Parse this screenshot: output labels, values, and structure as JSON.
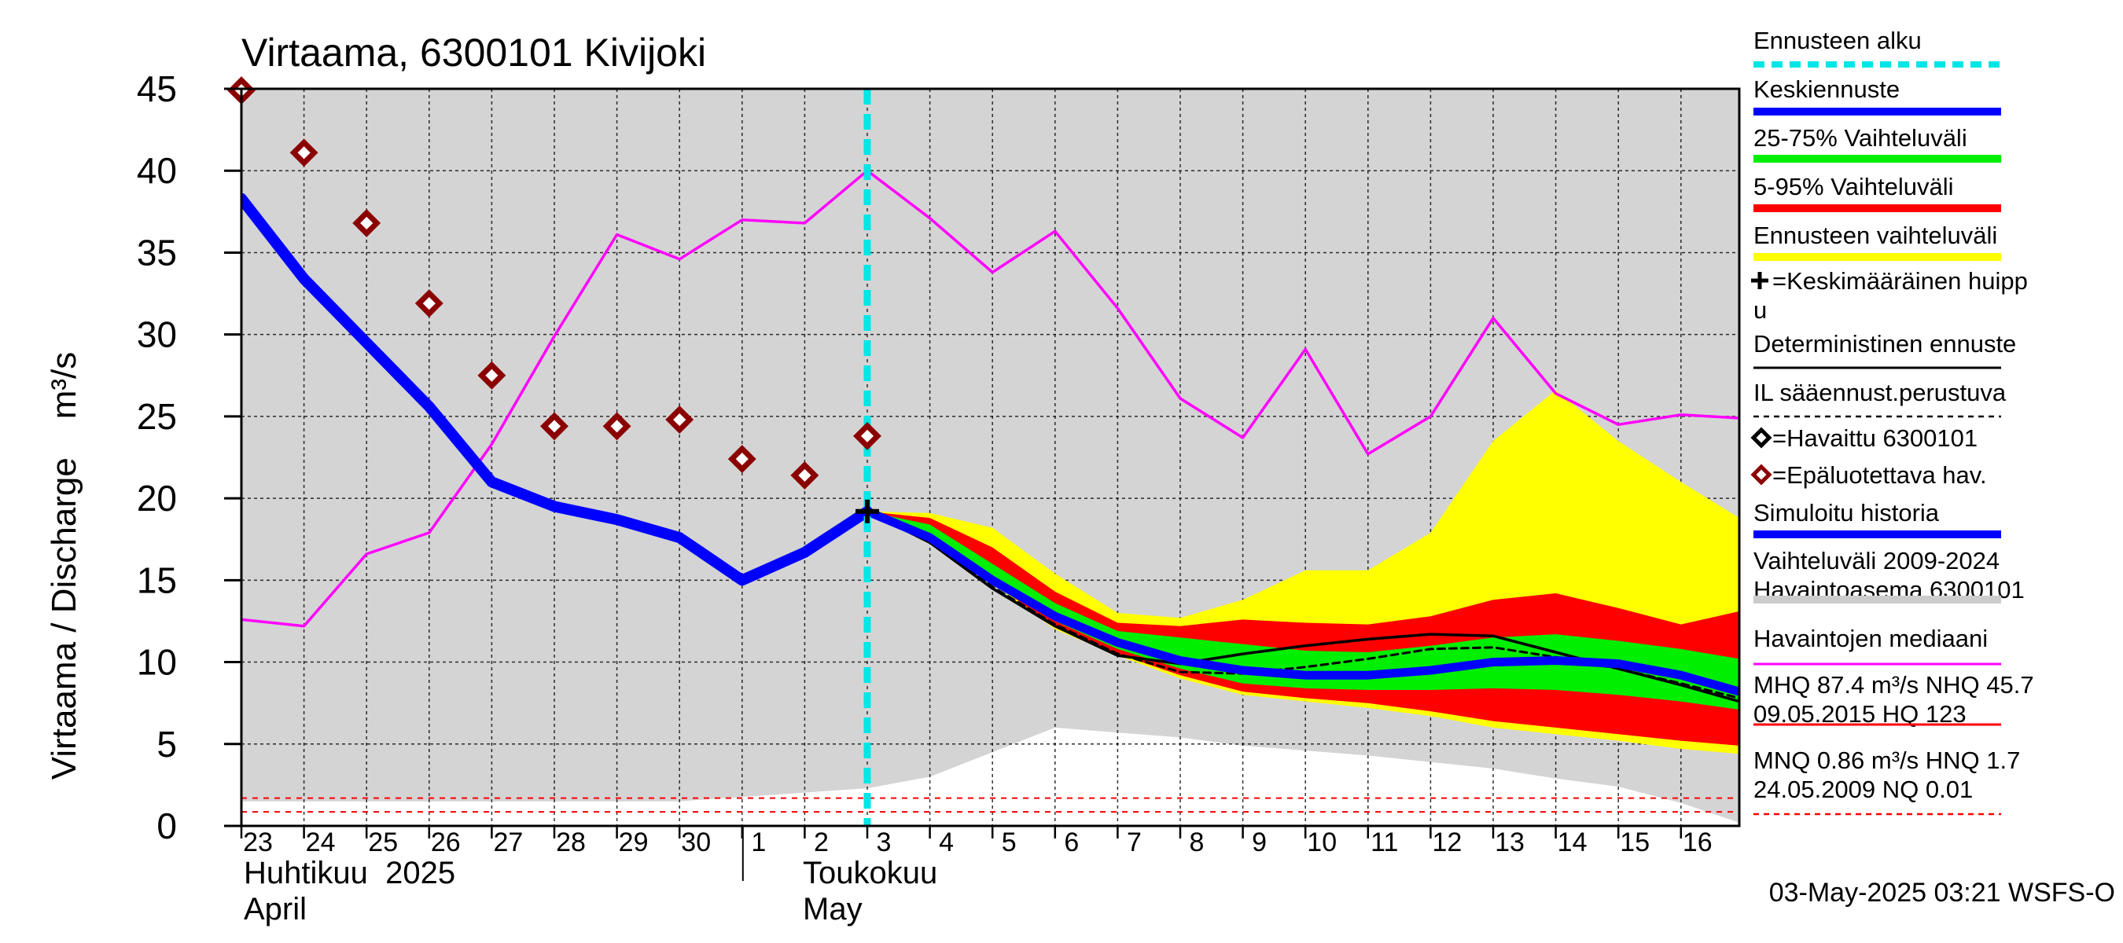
{
  "chart_data": {
    "type": "line",
    "title": "Virtaama, 6300101 Kivijoki",
    "ylabel": "Virtaama / Discharge    m³/s",
    "ylim": [
      0,
      45
    ],
    "y_ticks": [
      "0",
      "5",
      "10",
      "15",
      "20",
      "25",
      "30",
      "35",
      "40",
      "45"
    ],
    "x_ticks": [
      "23",
      "24",
      "25",
      "26",
      "27",
      "28",
      "29",
      "30",
      "1",
      "2",
      "3",
      "4",
      "5",
      "6",
      "7",
      "8",
      "9",
      "10",
      "11",
      "12",
      "13",
      "14",
      "15",
      "16"
    ],
    "x_dates": [
      "2025-04-23",
      "2025-04-24",
      "2025-04-25",
      "2025-04-26",
      "2025-04-27",
      "2025-04-28",
      "2025-04-29",
      "2025-04-30",
      "2025-05-01",
      "2025-05-02",
      "2025-05-03",
      "2025-05-04",
      "2025-05-05",
      "2025-05-06",
      "2025-05-07",
      "2025-05-08",
      "2025-05-09",
      "2025-05-10",
      "2025-05-11",
      "2025-05-12",
      "2025-05-13",
      "2025-05-14",
      "2025-05-15",
      "2025-05-16"
    ],
    "month_labels": [
      {
        "fi": "Huhtikuu  2025",
        "en": "April"
      },
      {
        "fi": "Toukokuu",
        "en": "May"
      }
    ],
    "forecast_start": "2025-05-03",
    "footer": "03-May-2025 03:21 WSFS-O",
    "history_band": {
      "x": [
        "2025-04-22",
        "2025-04-30",
        "2025-05-03",
        "2025-05-04",
        "2025-05-05",
        "2025-05-06",
        "2025-05-07",
        "2025-05-08",
        "2025-05-09",
        "2025-05-10",
        "2025-05-11",
        "2025-05-12",
        "2025-05-13",
        "2025-05-14",
        "2025-05-15",
        "2025-05-16",
        "2025-05-17"
      ],
      "low": [
        1.5,
        1.5,
        2.3,
        3.0,
        4.5,
        6.0,
        5.7,
        5.4,
        4.9,
        4.6,
        4.3,
        3.9,
        3.5,
        2.9,
        2.4,
        1.4,
        0.2
      ],
      "high": [
        45,
        45,
        45,
        45,
        45,
        45,
        45,
        45,
        45,
        45,
        45,
        45,
        45,
        45,
        45,
        45,
        45
      ]
    },
    "forecast_x": [
      "2025-05-03",
      "2025-05-04",
      "2025-05-05",
      "2025-05-06",
      "2025-05-07",
      "2025-05-08",
      "2025-05-09",
      "2025-05-10",
      "2025-05-11",
      "2025-05-12",
      "2025-05-13",
      "2025-05-14",
      "2025-05-15",
      "2025-05-16",
      "2025-05-17"
    ],
    "band_yellow": {
      "low": [
        19.2,
        17.7,
        14.8,
        12.0,
        10.4,
        9.0,
        8.0,
        7.6,
        7.2,
        6.7,
        6.0,
        5.6,
        5.2,
        4.7,
        4.4
      ],
      "high": [
        19.2,
        19.1,
        18.2,
        15.4,
        13.0,
        12.7,
        13.8,
        15.6,
        15.6,
        17.9,
        23.5,
        26.6,
        23.5,
        21.0,
        18.8
      ]
    },
    "band_red": {
      "low": [
        19.2,
        17.8,
        14.9,
        12.1,
        10.5,
        9.2,
        8.2,
        7.8,
        7.5,
        7.0,
        6.4,
        6.0,
        5.6,
        5.2,
        4.9
      ],
      "high": [
        19.2,
        18.8,
        17.0,
        14.3,
        12.4,
        12.2,
        12.6,
        12.4,
        12.3,
        12.8,
        13.8,
        14.2,
        13.3,
        12.3,
        13.1
      ]
    },
    "band_green": {
      "low": [
        19.2,
        17.9,
        15.2,
        12.5,
        10.8,
        9.6,
        8.7,
        8.4,
        8.3,
        8.3,
        8.4,
        8.3,
        8.0,
        7.6,
        7.1
      ],
      "high": [
        19.2,
        18.4,
        16.0,
        13.6,
        11.9,
        11.5,
        11.1,
        10.7,
        10.6,
        11.0,
        11.5,
        11.7,
        11.3,
        10.8,
        10.2
      ]
    },
    "series": [
      {
        "name": "Simuloitu historia",
        "color": "#0000ff",
        "x": [
          "2025-04-23",
          "2025-04-24",
          "2025-04-25",
          "2025-04-26",
          "2025-04-27",
          "2025-04-28",
          "2025-04-29",
          "2025-04-30",
          "2025-05-01",
          "2025-05-02",
          "2025-05-03"
        ],
        "values": [
          38.3,
          33.4,
          29.5,
          25.6,
          21.0,
          19.5,
          18.7,
          17.6,
          15.0,
          16.7,
          19.2
        ]
      },
      {
        "name": "Keskiennuste",
        "color": "#0000ff",
        "x": [
          "2025-05-03",
          "2025-05-04",
          "2025-05-05",
          "2025-05-06",
          "2025-05-07",
          "2025-05-08",
          "2025-05-09",
          "2025-05-10",
          "2025-05-11",
          "2025-05-12",
          "2025-05-13",
          "2025-05-14",
          "2025-05-15",
          "2025-05-16",
          "2025-05-17"
        ],
        "values": [
          19.2,
          17.6,
          15.0,
          12.8,
          11.2,
          10.1,
          9.5,
          9.2,
          9.2,
          9.5,
          10.0,
          10.1,
          9.9,
          9.2,
          8.2
        ]
      },
      {
        "name": "Deterministinen ennuste",
        "color": "#000000",
        "x": [
          "2025-05-03",
          "2025-05-04",
          "2025-05-05",
          "2025-05-06",
          "2025-05-07",
          "2025-05-08",
          "2025-05-09",
          "2025-05-10",
          "2025-05-11",
          "2025-05-12",
          "2025-05-13",
          "2025-05-14",
          "2025-05-15",
          "2025-05-16",
          "2025-05-17"
        ],
        "values": [
          19.2,
          17.3,
          14.5,
          12.2,
          10.4,
          9.9,
          10.5,
          11.0,
          11.4,
          11.7,
          11.6,
          10.6,
          9.6,
          8.6,
          7.6
        ]
      },
      {
        "name": "IL sääennust.perustuva",
        "color": "#000000",
        "x": [
          "2025-05-03",
          "2025-05-04",
          "2025-05-05",
          "2025-05-06",
          "2025-05-07",
          "2025-05-08",
          "2025-05-09",
          "2025-05-10",
          "2025-05-11",
          "2025-05-12",
          "2025-05-13",
          "2025-05-14",
          "2025-05-15",
          "2025-05-16",
          "2025-05-17"
        ],
        "values": [
          19.2,
          17.4,
          14.6,
          12.3,
          10.5,
          9.4,
          9.3,
          9.7,
          10.2,
          10.8,
          10.9,
          10.3,
          9.6,
          8.7,
          7.8
        ]
      },
      {
        "name": "Havaintojen mediaani",
        "color": "#ff00ff",
        "x": [
          "2025-04-22",
          "2025-04-23",
          "2025-04-24",
          "2025-04-25",
          "2025-04-26",
          "2025-04-27",
          "2025-04-28",
          "2025-04-29",
          "2025-04-30",
          "2025-05-01",
          "2025-05-02",
          "2025-05-03",
          "2025-05-04",
          "2025-05-05",
          "2025-05-06",
          "2025-05-07",
          "2025-05-08",
          "2025-05-09",
          "2025-05-10",
          "2025-05-11",
          "2025-05-12",
          "2025-05-13",
          "2025-05-14",
          "2025-05-15",
          "2025-05-16",
          "2025-05-17"
        ],
        "values": [
          12.7,
          12.6,
          12.2,
          16.6,
          17.9,
          23.3,
          29.9,
          36.1,
          34.6,
          37.0,
          36.8,
          40.0,
          37.1,
          33.8,
          36.3,
          31.6,
          26.1,
          23.7,
          29.1,
          22.7,
          25.0,
          31.0,
          26.4,
          24.5,
          25.1,
          24.9
        ]
      }
    ],
    "observed_unreliable": {
      "name": "=Epäluotettava hav.",
      "color": "#8b0000",
      "x": [
        "2025-04-23",
        "2025-04-24",
        "2025-04-25",
        "2025-04-26",
        "2025-04-27",
        "2025-04-28",
        "2025-04-29",
        "2025-04-30",
        "2025-05-01",
        "2025-05-02",
        "2025-05-03"
      ],
      "values": [
        44.9,
        41.1,
        36.8,
        31.9,
        27.5,
        24.4,
        24.4,
        24.8,
        22.4,
        21.4,
        23.8
      ]
    },
    "peak_marker": {
      "x": "2025-05-03",
      "value": 19.2
    },
    "ref_lines": [
      1.7,
      0.86
    ],
    "legend": [
      {
        "label": "Ennusteen alku",
        "style": "dash",
        "color": "#00e5e5"
      },
      {
        "label": "Keskiennuste",
        "style": "thick",
        "color": "#0000ff"
      },
      {
        "label": "25-75% Vaihteluväli",
        "style": "thick",
        "color": "#00ee00"
      },
      {
        "label": "5-95% Vaihteluväli",
        "style": "thick",
        "color": "#ff0000"
      },
      {
        "label": "Ennusteen vaihteluväli",
        "style": "thick",
        "color": "#ffff00"
      },
      {
        "label": "=Keskimääräinen huipp",
        "label2": "u",
        "style": "plus",
        "color": "#000000"
      },
      {
        "label": "Deterministinen ennuste",
        "style": "thin",
        "color": "#000000"
      },
      {
        "label": "IL sääennust.perustuva",
        "style": "dashthin",
        "color": "#000000"
      },
      {
        "label": "=Havaittu 6300101",
        "style": "diamond",
        "color": "#000000"
      },
      {
        "label": "=Epäluotettava hav.",
        "style": "diamond",
        "color": "#8b0000"
      },
      {
        "label": "Simuloitu historia",
        "style": "thick",
        "color": "#0000ff"
      },
      {
        "label": "Vaihteluväli 2009-2024",
        "label2": " Havaintoasema 6300101",
        "style": "thick",
        "color": "#cccccc"
      },
      {
        "label": "Havaintojen mediaani",
        "style": "thin",
        "color": "#ff00ff"
      },
      {
        "label": "MHQ 87.4 m³/s NHQ 45.7",
        "label2": "09.05.2015 HQ  123",
        "style": "thin",
        "color": "#ff0000"
      },
      {
        "label": "MNQ 0.86 m³/s HNQ  1.7",
        "label2": "24.05.2009 NQ 0.01",
        "style": "dashthin",
        "color": "#ff0000"
      }
    ]
  }
}
